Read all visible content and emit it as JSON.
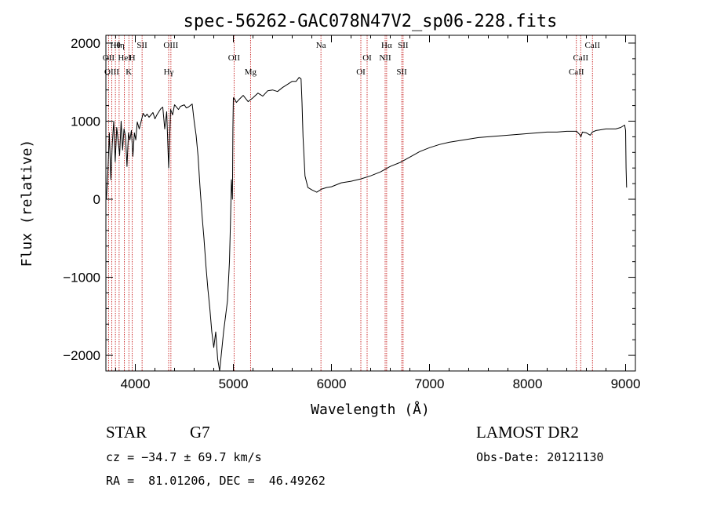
{
  "chart_data": {
    "type": "line",
    "title": "spec-56262-GAC078N47V2_sp06-228.fits",
    "xlabel": "Wavelength (Å)",
    "ylabel": "Flux (relative)",
    "xlim": [
      3700,
      9100
    ],
    "ylim": [
      -2200,
      2100
    ],
    "xticks": [
      4000,
      5000,
      6000,
      7000,
      8000,
      9000
    ],
    "yticks": [
      -2000,
      -1000,
      0,
      1000,
      2000
    ],
    "xtick_labels": [
      "4000",
      "5000",
      "6000",
      "7000",
      "8000",
      "9000"
    ],
    "ytick_labels": [
      "−2000",
      "−1000",
      "0",
      "1000",
      "2000"
    ],
    "grid": false,
    "series": [
      {
        "x": [
          3705,
          3720,
          3735,
          3750,
          3765,
          3780,
          3795,
          3810,
          3825,
          3840,
          3855,
          3870,
          3885,
          3900,
          3915,
          3930,
          3945,
          3960,
          3975,
          3990,
          4005,
          4020,
          4040,
          4060,
          4080,
          4100,
          4120,
          4140,
          4160,
          4180,
          4200,
          4220,
          4240,
          4260,
          4280,
          4300,
          4320,
          4340,
          4360,
          4380,
          4400,
          4420,
          4440,
          4460,
          4480,
          4500,
          4520,
          4540,
          4560,
          4580,
          4600,
          4620,
          4640,
          4660,
          4680,
          4700,
          4720,
          4740,
          4760,
          4780,
          4800,
          4820,
          4840,
          4860,
          4880,
          4900,
          4920,
          4940,
          4960,
          4970,
          4980,
          4990,
          4995,
          5000,
          5010,
          5030,
          5060,
          5100,
          5150,
          5200,
          5250,
          5300,
          5350,
          5400,
          5450,
          5500,
          5550,
          5600,
          5640,
          5670,
          5690,
          5700,
          5710,
          5730,
          5760,
          5800,
          5850,
          5900,
          5950,
          6000,
          6100,
          6200,
          6300,
          6400,
          6500,
          6600,
          6700,
          6800,
          6900,
          7000,
          7100,
          7200,
          7300,
          7400,
          7500,
          7600,
          7700,
          7800,
          7900,
          8000,
          8100,
          8200,
          8300,
          8400,
          8500,
          8530,
          8545,
          8560,
          8600,
          8640,
          8660,
          8680,
          8700,
          8800,
          8900,
          8950,
          8990,
          9000,
          9005,
          9010
        ],
        "y": [
          0,
          350,
          850,
          250,
          700,
          1000,
          480,
          920,
          750,
          560,
          1000,
          630,
          900,
          800,
          420,
          850,
          760,
          880,
          550,
          850,
          760,
          990,
          900,
          1000,
          1100,
          1060,
          1090,
          1050,
          1080,
          1110,
          1030,
          1080,
          1120,
          1160,
          1180,
          900,
          1120,
          400,
          1150,
          1080,
          1210,
          1180,
          1150,
          1190,
          1200,
          1210,
          1170,
          1180,
          1200,
          1220,
          1000,
          820,
          550,
          150,
          -200,
          -500,
          -850,
          -1150,
          -1400,
          -1700,
          -1900,
          -1700,
          -2050,
          -2200,
          -1950,
          -1700,
          -1500,
          -1300,
          -800,
          -300,
          250,
          0,
          900,
          1300,
          1290,
          1240,
          1280,
          1330,
          1250,
          1300,
          1360,
          1320,
          1390,
          1400,
          1380,
          1430,
          1470,
          1510,
          1510,
          1560,
          1540,
          1240,
          800,
          300,
          150,
          120,
          90,
          130,
          150,
          160,
          210,
          230,
          260,
          300,
          350,
          420,
          470,
          540,
          610,
          660,
          700,
          730,
          750,
          770,
          790,
          800,
          810,
          820,
          830,
          840,
          850,
          860,
          860,
          870,
          870,
          830,
          800,
          860,
          850,
          820,
          860,
          870,
          880,
          900,
          900,
          920,
          950,
          880,
          400,
          150
        ]
      }
    ],
    "annotations": [
      {
        "text": "Hθ",
        "x": 3797
      },
      {
        "text": "OII",
        "x": 3727
      },
      {
        "text": "OIII",
        "x": 3760
      },
      {
        "text": "Hη",
        "x": 3835
      },
      {
        "text": "HeI",
        "x": 3889
      },
      {
        "text": "K",
        "x": 3934
      },
      {
        "text": "SII",
        "x": 4069
      },
      {
        "text": "H",
        "x": 3969
      },
      {
        "text": "Hγ",
        "x": 4340
      },
      {
        "text": "OIII",
        "x": 4363
      },
      {
        "text": "OII",
        "x": 5007
      },
      {
        "text": "Mg",
        "x": 5175
      },
      {
        "text": "Na",
        "x": 5893
      },
      {
        "text": "OI",
        "x": 6364
      },
      {
        "text": "OI",
        "x": 6300
      },
      {
        "text": "Hα",
        "x": 6563
      },
      {
        "text": "NII",
        "x": 6548
      },
      {
        "text": "SII",
        "x": 6717
      },
      {
        "text": "SII",
        "x": 6731
      },
      {
        "text": "CaII",
        "x": 8542
      },
      {
        "text": "CaII",
        "x": 8498
      },
      {
        "text": "CaII",
        "x": 8662
      }
    ],
    "line_markers_x": [
      3727,
      3760,
      3797,
      3835,
      3889,
      3934,
      3969,
      4069,
      4340,
      4363,
      5007,
      5175,
      5893,
      6300,
      6364,
      6548,
      6563,
      6717,
      6731,
      8498,
      8542,
      8662
    ]
  },
  "info": {
    "object_class": "STAR",
    "subclass": "G7",
    "survey": "LAMOST DR2",
    "cz": "cz = −34.7 ± 69.7 km/s",
    "obs_date": "Obs-Date: 20121130",
    "coords": "RA =  81.01206, DEC =  46.49262"
  },
  "colors": {
    "spectrum": "#000000",
    "marker": "#c00000",
    "frame": "#000000"
  }
}
